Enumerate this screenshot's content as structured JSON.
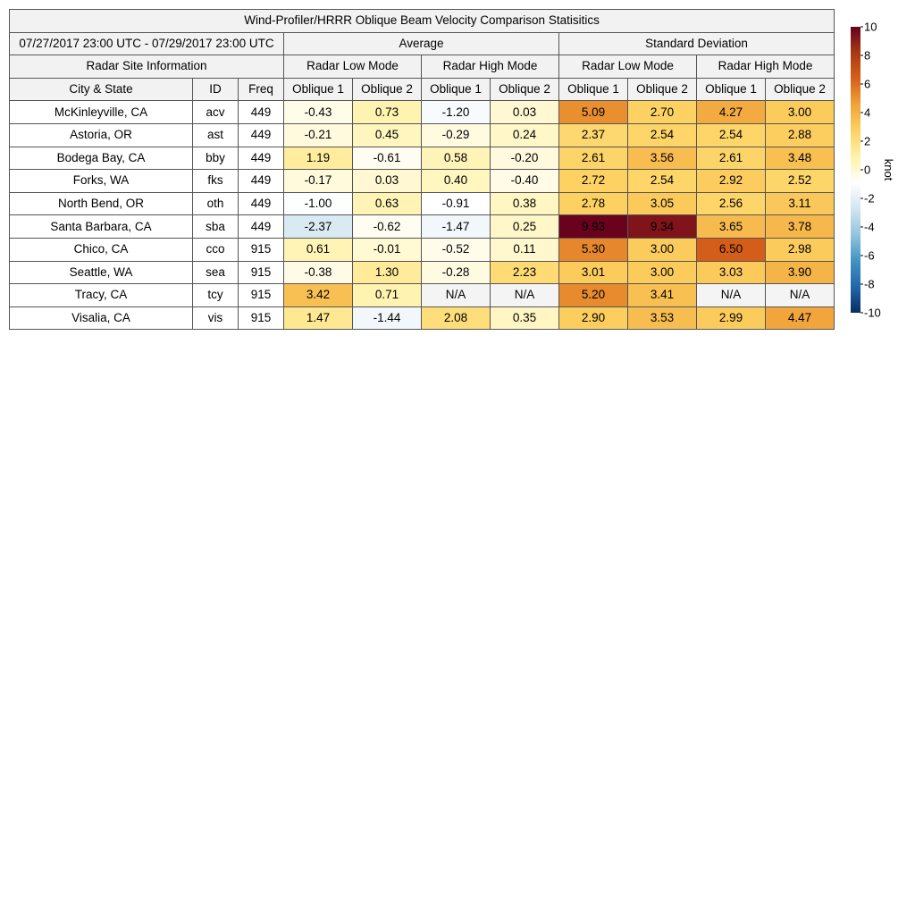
{
  "chart_data": {
    "type": "table",
    "title": "Wind-Profiler/HRRR Oblique Beam Velocity Comparison Statisitics",
    "date_range": "07/27/2017 23:00 UTC - 07/29/2017 23:00 UTC",
    "group_headers": {
      "average": "Average",
      "std": "Standard Deviation",
      "site_info": "Radar Site Information",
      "low_mode": "Radar Low Mode",
      "high_mode": "Radar High Mode"
    },
    "column_headers": {
      "city": "City & State",
      "id": "ID",
      "freq": "Freq",
      "oblique1": "Oblique 1",
      "oblique2": "Oblique 2"
    },
    "rows": [
      {
        "city": "McKinleyville, CA",
        "id": "acv",
        "freq": "449",
        "vals": [
          "-0.43",
          "0.73",
          "-1.20",
          "0.03",
          "5.09",
          "2.70",
          "4.27",
          "3.00"
        ]
      },
      {
        "city": "Astoria, OR",
        "id": "ast",
        "freq": "449",
        "vals": [
          "-0.21",
          "0.45",
          "-0.29",
          "0.24",
          "2.37",
          "2.54",
          "2.54",
          "2.88"
        ]
      },
      {
        "city": "Bodega Bay, CA",
        "id": "bby",
        "freq": "449",
        "vals": [
          "1.19",
          "-0.61",
          "0.58",
          "-0.20",
          "2.61",
          "3.56",
          "2.61",
          "3.48"
        ]
      },
      {
        "city": "Forks, WA",
        "id": "fks",
        "freq": "449",
        "vals": [
          "-0.17",
          "0.03",
          "0.40",
          "-0.40",
          "2.72",
          "2.54",
          "2.92",
          "2.52"
        ]
      },
      {
        "city": "North Bend, OR",
        "id": "oth",
        "freq": "449",
        "vals": [
          "-1.00",
          "0.63",
          "-0.91",
          "0.38",
          "2.78",
          "3.05",
          "2.56",
          "3.11"
        ]
      },
      {
        "city": "Santa Barbara, CA",
        "id": "sba",
        "freq": "449",
        "vals": [
          "-2.37",
          "-0.62",
          "-1.47",
          "0.25",
          "9.93",
          "9.34",
          "3.65",
          "3.78"
        ]
      },
      {
        "city": "Chico, CA",
        "id": "cco",
        "freq": "915",
        "vals": [
          "0.61",
          "-0.01",
          "-0.52",
          "0.11",
          "5.30",
          "3.00",
          "6.50",
          "2.98"
        ]
      },
      {
        "city": "Seattle, WA",
        "id": "sea",
        "freq": "915",
        "vals": [
          "-0.38",
          "1.30",
          "-0.28",
          "2.23",
          "3.01",
          "3.00",
          "3.03",
          "3.90"
        ]
      },
      {
        "city": "Tracy, CA",
        "id": "tcy",
        "freq": "915",
        "vals": [
          "3.42",
          "0.71",
          "N/A",
          "N/A",
          "5.20",
          "3.41",
          "N/A",
          "N/A"
        ]
      },
      {
        "city": "Visalia, CA",
        "id": "vis",
        "freq": "915",
        "vals": [
          "1.47",
          "-1.44",
          "2.08",
          "0.35",
          "2.90",
          "3.53",
          "2.99",
          "4.47"
        ]
      }
    ],
    "colorbar": {
      "label": "knot",
      "range": [
        -10,
        10
      ],
      "ticks": [
        10,
        8,
        6,
        4,
        2,
        0,
        -2,
        -4,
        -6,
        -8,
        -10
      ],
      "colors": [
        "#053061",
        "#2166ac",
        "#4393c3",
        "#92c5de",
        "#d1e5f0",
        "#ffffff",
        "#fff2a8",
        "#fdd262",
        "#f1a33a",
        "#d6601a",
        "#a83a12",
        "#67001f"
      ],
      "na_color": "#f4f4f4"
    }
  }
}
